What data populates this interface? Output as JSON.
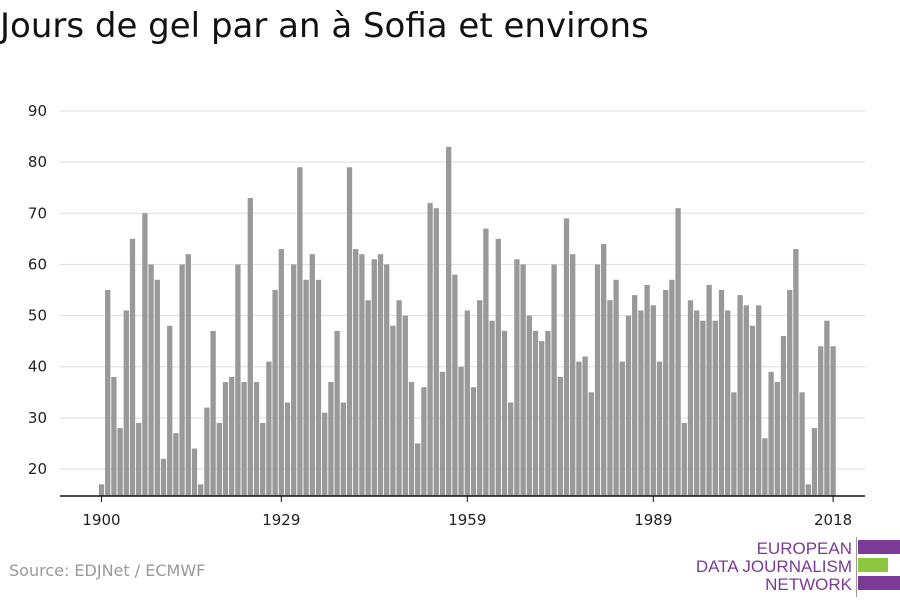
{
  "title": "Jours de gel par an à Sofia et environs",
  "source": "Source: EDJNet / ECMWF",
  "logo": {
    "line1": "EUROPEAN",
    "line2": "DATA JOURNALISM",
    "line3": "NETWORK",
    "colors": [
      "#7b3a96",
      "#8dc63f",
      "#7b3a96"
    ]
  },
  "chart_data": {
    "type": "bar",
    "title": "Jours de gel par an à Sofia et environs",
    "xlabel": "",
    "ylabel": "",
    "ylim": [
      15,
      90
    ],
    "yticks": [
      20,
      30,
      40,
      50,
      60,
      70,
      80,
      90
    ],
    "xticks": [
      1900,
      1929,
      1959,
      1989,
      2018
    ],
    "bar_color": "#999999",
    "grid": true,
    "years": [
      1900,
      2018
    ],
    "values": [
      17,
      55,
      38,
      28,
      51,
      65,
      29,
      70,
      60,
      57,
      22,
      48,
      27,
      60,
      62,
      24,
      17,
      32,
      47,
      29,
      37,
      38,
      60,
      37,
      73,
      37,
      29,
      41,
      55,
      63,
      33,
      60,
      79,
      57,
      62,
      57,
      31,
      37,
      47,
      33,
      79,
      63,
      62,
      53,
      61,
      62,
      60,
      48,
      53,
      50,
      37,
      25,
      36,
      72,
      71,
      39,
      83,
      58,
      40,
      51,
      36,
      53,
      67,
      49,
      65,
      47,
      33,
      61,
      60,
      50,
      47,
      45,
      47,
      60,
      38,
      69,
      62,
      41,
      42,
      35,
      60,
      64,
      53,
      57,
      41,
      50,
      54,
      51,
      56,
      52,
      41,
      55,
      57,
      71,
      29,
      53,
      51,
      49,
      56,
      49,
      55,
      51,
      35,
      54,
      52,
      48,
      52,
      26,
      39,
      37,
      46,
      55,
      63,
      35,
      17,
      28,
      44,
      49,
      44
    ]
  }
}
